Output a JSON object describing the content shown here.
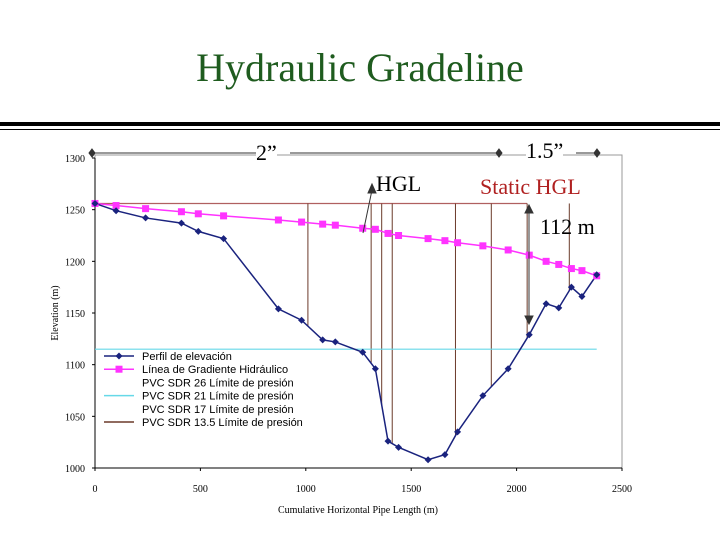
{
  "slide": {
    "title": "Hydraulic Gradeline",
    "annotations": {
      "two_inch": "2”",
      "one_half_inch": "1.5”",
      "hgl": "HGL",
      "static_hgl": "Static HGL",
      "static_head": "112 m"
    }
  },
  "colors": {
    "title": "#1f5c1f",
    "elevation": "#1a237e",
    "hgl": "#ff33ff",
    "sdr21": "#66d9e8",
    "sdr135": "#6b3a2a",
    "static_level": "#b06060"
  },
  "chart_data": {
    "type": "line",
    "xlabel": "Cumulative Horizontal Pipe Length (m)",
    "ylabel": "Elevation (m)",
    "xlim": [
      0,
      2500
    ],
    "ylim": [
      1000,
      1300
    ],
    "x_ticks": [
      0,
      500,
      1000,
      1500,
      2000,
      2500
    ],
    "y_ticks": [
      1000,
      1050,
      1100,
      1150,
      1200,
      1250,
      1300
    ],
    "grid": false,
    "legend_position": "bottom-left",
    "series": [
      {
        "name": "Perfil de elevación",
        "marker": "diamond",
        "x": [
          0,
          100,
          240,
          410,
          490,
          610,
          870,
          980,
          1080,
          1140,
          1270,
          1330,
          1390,
          1440,
          1580,
          1660,
          1720,
          1840,
          1960,
          2060,
          2140,
          2200,
          2260,
          2310,
          2380
        ],
        "y": [
          1256,
          1249,
          1242,
          1237,
          1229,
          1222,
          1154,
          1143,
          1124,
          1122,
          1112,
          1096,
          1026,
          1020,
          1008,
          1013,
          1035,
          1070,
          1096,
          1129,
          1159,
          1155,
          1175,
          1166,
          1187
        ]
      },
      {
        "name": "Línea de Gradiente Hidráulico",
        "marker": "square",
        "x": [
          0,
          100,
          240,
          410,
          490,
          610,
          870,
          980,
          1080,
          1140,
          1270,
          1330,
          1390,
          1440,
          1580,
          1660,
          1720,
          1840,
          1960,
          2060,
          2140,
          2200,
          2260,
          2310,
          2380
        ],
        "y": [
          1256,
          1254,
          1251,
          1248,
          1246,
          1244,
          1240,
          1238,
          1236,
          1235,
          1232,
          1231,
          1227,
          1225,
          1222,
          1220,
          1218,
          1215,
          1211,
          1206,
          1200,
          1197,
          1193,
          1191,
          1186
        ]
      },
      {
        "name": "PVC SDR 26 Límite de presión",
        "x": [],
        "y": []
      },
      {
        "name": "PVC SDR 21 Límite de presión",
        "x": [
          0,
          2380
        ],
        "y": [
          1115,
          1115
        ]
      },
      {
        "name": "PVC SDR 17 Límite de presión",
        "x": [],
        "y": []
      },
      {
        "name": "PVC SDR 13.5 Límite de presión",
        "x": [
          1010,
          1310,
          1360,
          1410,
          1710,
          1880,
          2050,
          2250
        ],
        "y": [
          1256,
          1256,
          1256,
          1256,
          1256,
          1256,
          1256,
          1256
        ]
      }
    ],
    "static_level": 1256,
    "static_level_xrange": [
      0,
      2050
    ]
  }
}
